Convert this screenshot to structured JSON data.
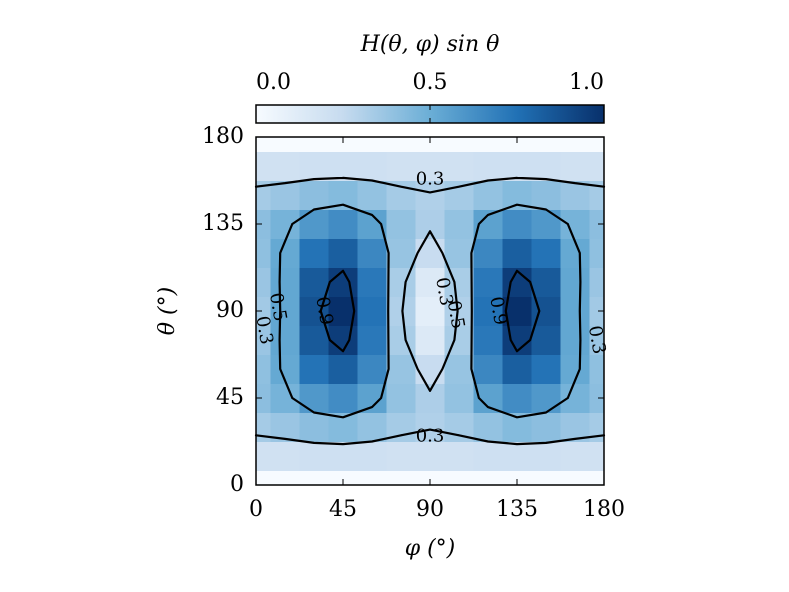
{
  "chart_data": {
    "type": "heatmap",
    "colorbar": {
      "label": "H(θ, φ) sin θ",
      "lim": [
        0,
        1
      ],
      "ticks": [
        {
          "value": 0,
          "label": "0.0"
        },
        0.5,
        {
          "value": 1,
          "label": "1.0"
        }
      ]
    },
    "xlabel": "φ (°)",
    "ylabel": "θ (°)",
    "xlim": [
      0,
      180
    ],
    "ylim": [
      0,
      180
    ],
    "xticks": [
      0,
      45,
      90,
      135,
      180
    ],
    "yticks": [
      0,
      45,
      90,
      135,
      180
    ],
    "colormap": [
      "#f7fbff",
      "#c6dbef",
      "#6baed6",
      "#2171b5",
      "#08306b"
    ],
    "contour_levels": [
      0.3,
      0.5,
      0.9
    ],
    "x": [
      0,
      15,
      30,
      45,
      60,
      75,
      90,
      105,
      120,
      135,
      150,
      165,
      180
    ],
    "y": [
      0,
      15,
      30,
      45,
      60,
      75,
      90,
      105,
      120,
      135,
      150,
      165,
      180
    ],
    "z": [
      [
        0,
        0,
        0,
        0,
        0,
        0,
        0,
        0,
        0,
        0,
        0,
        0,
        0
      ],
      [
        0.2,
        0.2,
        0.21,
        0.21,
        0.21,
        0.2,
        0.2,
        0.2,
        0.21,
        0.21,
        0.21,
        0.2,
        0.2
      ],
      [
        0.34,
        0.37,
        0.41,
        0.43,
        0.39,
        0.34,
        0.31,
        0.34,
        0.39,
        0.43,
        0.41,
        0.37,
        0.34
      ],
      [
        0.41,
        0.47,
        0.59,
        0.64,
        0.55,
        0.39,
        0.32,
        0.39,
        0.55,
        0.64,
        0.59,
        0.47,
        0.41
      ],
      [
        0.4,
        0.52,
        0.74,
        0.82,
        0.66,
        0.38,
        0.24,
        0.38,
        0.66,
        0.82,
        0.74,
        0.52,
        0.4
      ],
      [
        0.37,
        0.53,
        0.84,
        0.95,
        0.72,
        0.33,
        0.14,
        0.33,
        0.72,
        0.95,
        0.84,
        0.53,
        0.37
      ],
      [
        0.35,
        0.53,
        0.87,
        1,
        0.74,
        0.31,
        0.1,
        0.31,
        0.74,
        1,
        0.87,
        0.53,
        0.35
      ],
      [
        0.37,
        0.53,
        0.84,
        0.95,
        0.72,
        0.33,
        0.14,
        0.33,
        0.72,
        0.95,
        0.84,
        0.53,
        0.37
      ],
      [
        0.4,
        0.52,
        0.74,
        0.82,
        0.66,
        0.38,
        0.24,
        0.38,
        0.66,
        0.82,
        0.74,
        0.52,
        0.4
      ],
      [
        0.41,
        0.47,
        0.59,
        0.64,
        0.55,
        0.39,
        0.32,
        0.39,
        0.55,
        0.64,
        0.59,
        0.47,
        0.41
      ],
      [
        0.34,
        0.37,
        0.41,
        0.43,
        0.39,
        0.34,
        0.31,
        0.34,
        0.39,
        0.43,
        0.41,
        0.37,
        0.34
      ],
      [
        0.2,
        0.2,
        0.21,
        0.21,
        0.21,
        0.2,
        0.2,
        0.2,
        0.21,
        0.21,
        0.21,
        0.2,
        0.2
      ],
      [
        0,
        0,
        0,
        0,
        0,
        0,
        0,
        0,
        0,
        0,
        0,
        0,
        0
      ]
    ]
  }
}
